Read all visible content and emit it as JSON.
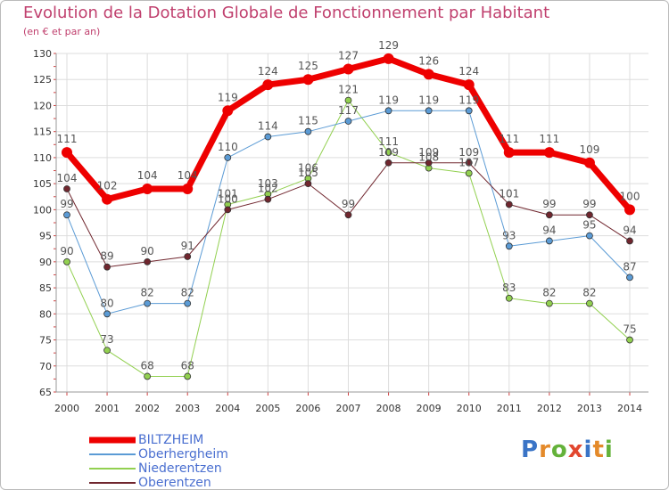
{
  "header": {
    "title": "Evolution de la Dotation Globale de Fonctionnement par Habitant",
    "subtitle": "(en € et par an)"
  },
  "brand": {
    "letters": [
      "P",
      "r",
      "o",
      "x",
      "i",
      "t",
      "i"
    ],
    "colors": [
      "#3a74c6",
      "#e48a2a",
      "#64b23a",
      "#e2472f",
      "#3a74c6",
      "#e48a2a",
      "#64b23a"
    ]
  },
  "chart_data": {
    "type": "line",
    "categories": [
      "2000",
      "2001",
      "2002",
      "2003",
      "2004",
      "2005",
      "2006",
      "2007",
      "2008",
      "2009",
      "2010",
      "2011",
      "2012",
      "2013",
      "2014"
    ],
    "ylim": [
      65,
      130
    ],
    "yticks": [
      65,
      70,
      75,
      80,
      85,
      90,
      95,
      100,
      105,
      110,
      115,
      120,
      125,
      130
    ],
    "grid": true,
    "legend_position": "bottom-left",
    "series": [
      {
        "name": "Niederentzen",
        "color": "#92d050",
        "width": 1,
        "values": [
          90,
          73,
          68,
          68,
          101,
          103,
          106,
          121,
          111,
          108,
          107,
          83,
          82,
          82,
          75
        ],
        "labels": [
          "90",
          "73",
          "68",
          "68",
          "101",
          "103",
          "106",
          "121",
          "111",
          "108",
          "107",
          "83",
          "82",
          "82",
          "75"
        ]
      },
      {
        "name": "Oberhergheim",
        "color": "#5b9bd5",
        "width": 1,
        "values": [
          99,
          80,
          82,
          82,
          110,
          114,
          115,
          117,
          119,
          119,
          119,
          93,
          94,
          95,
          87
        ],
        "labels": [
          "99",
          "80",
          "82",
          "82",
          "110",
          "114",
          "115",
          "117",
          "119",
          "119",
          "119",
          "93",
          "94",
          "95",
          "87"
        ]
      },
      {
        "name": "Oberentzen",
        "color": "#70262e",
        "width": 1,
        "values": [
          104,
          89,
          90,
          91,
          100,
          102,
          105,
          99,
          109,
          109,
          109,
          101,
          99,
          99,
          94
        ],
        "labels": [
          "104",
          "89",
          "90",
          "91",
          "100",
          "102",
          "105",
          "99",
          "109",
          "109",
          "109",
          "101",
          "99",
          "99",
          "94"
        ]
      },
      {
        "name": "BILTZHEIM",
        "color": "#ee0000",
        "width": 7,
        "values": [
          111,
          102,
          104,
          104,
          119,
          124,
          125,
          127,
          129,
          126,
          124,
          111,
          111,
          109,
          100
        ],
        "labels": [
          "111",
          "102",
          "104",
          "104",
          "119",
          "124",
          "125",
          "127",
          "129",
          "126",
          "124",
          "111",
          "111",
          "109",
          "100"
        ]
      }
    ],
    "legend": [
      {
        "name": "BILTZHEIM",
        "color": "#ee0000",
        "width": 7
      },
      {
        "name": "Oberhergheim",
        "color": "#5b9bd5",
        "width": 2
      },
      {
        "name": "Niederentzen",
        "color": "#92d050",
        "width": 2
      },
      {
        "name": "Oberentzen",
        "color": "#70262e",
        "width": 2
      }
    ]
  }
}
